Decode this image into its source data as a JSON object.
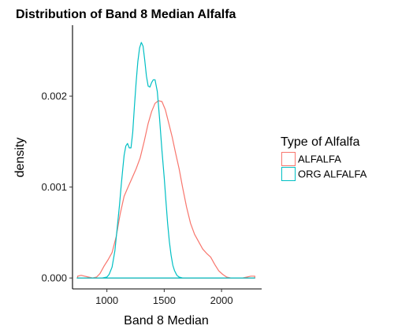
{
  "chart_data": {
    "type": "line",
    "title": "Distribution of Band 8 Median Alfalfa",
    "xlabel": "Band 8 Median",
    "ylabel": "density",
    "xlim": [
      700,
      2350
    ],
    "ylim": [
      -0.00012,
      0.00278
    ],
    "xticks": [
      1000,
      1500,
      2000
    ],
    "xtick_labels": [
      "1000",
      "1500",
      "2000"
    ],
    "yticks": [
      0.0,
      0.001,
      0.002
    ],
    "ytick_labels": [
      "0.000",
      "0.001",
      "0.002"
    ],
    "grid": false,
    "legend": {
      "title": "Type of Alfalfa",
      "position": "right",
      "entries": [
        "ALFALFA",
        "ORG ALFALFA"
      ]
    },
    "series": [
      {
        "name": "ALFALFA",
        "color": "#F8766D",
        "x": [
          745,
          775,
          805,
          840,
          875,
          910,
          940,
          975,
          1010,
          1045,
          1080,
          1115,
          1150,
          1185,
          1220,
          1255,
          1290,
          1325,
          1360,
          1390,
          1420,
          1450,
          1480,
          1510,
          1540,
          1570,
          1600,
          1630,
          1660,
          1695,
          1730,
          1765,
          1800,
          1835,
          1870,
          1905,
          1940,
          1975,
          2010,
          2045,
          2080,
          2115,
          2150,
          2185,
          2220,
          2255,
          2290
        ],
        "y": [
          2e-05,
          3e-05,
          2e-05,
          1e-05,
          0.0,
          1e-05,
          5e-05,
          0.00013,
          0.0002,
          0.00028,
          0.00045,
          0.0007,
          0.0009,
          0.001,
          0.0011,
          0.0012,
          0.00132,
          0.0015,
          0.0017,
          0.00183,
          0.00192,
          0.00195,
          0.00194,
          0.00185,
          0.0017,
          0.00155,
          0.00137,
          0.0012,
          0.001,
          0.00078,
          0.0006,
          0.00048,
          0.0004,
          0.00032,
          0.00027,
          0.00023,
          0.00015,
          8e-05,
          4e-05,
          1e-05,
          0.0,
          0.0,
          0.0,
          0.0,
          1e-05,
          2e-05,
          2e-05
        ]
      },
      {
        "name": "ORG ALFALFA",
        "color": "#00BFC4",
        "x": [
          740,
          820,
          900,
          960,
          1000,
          1020,
          1045,
          1070,
          1090,
          1110,
          1125,
          1140,
          1150,
          1165,
          1180,
          1195,
          1210,
          1225,
          1240,
          1255,
          1270,
          1285,
          1300,
          1315,
          1330,
          1345,
          1360,
          1375,
          1390,
          1405,
          1420,
          1440,
          1460,
          1480,
          1500,
          1515,
          1530,
          1545,
          1560,
          1575,
          1590,
          1610,
          1630,
          1660,
          1700,
          1760,
          1850,
          2000,
          2150,
          2290
        ],
        "y": [
          0.0,
          0.0,
          0.0,
          0.0,
          1e-05,
          4e-05,
          0.00012,
          0.0003,
          0.00055,
          0.0008,
          0.00102,
          0.00122,
          0.00135,
          0.00145,
          0.00148,
          0.00143,
          0.00143,
          0.0016,
          0.00188,
          0.00215,
          0.00238,
          0.00253,
          0.00259,
          0.00255,
          0.0024,
          0.00222,
          0.00211,
          0.0021,
          0.00215,
          0.00218,
          0.00218,
          0.00205,
          0.00175,
          0.0014,
          0.0011,
          0.00085,
          0.0006,
          0.0004,
          0.00025,
          0.00014,
          8e-05,
          3e-05,
          1e-05,
          0.0,
          0.0,
          0.0,
          0.0,
          0.0,
          0.0,
          0.0
        ]
      }
    ]
  }
}
